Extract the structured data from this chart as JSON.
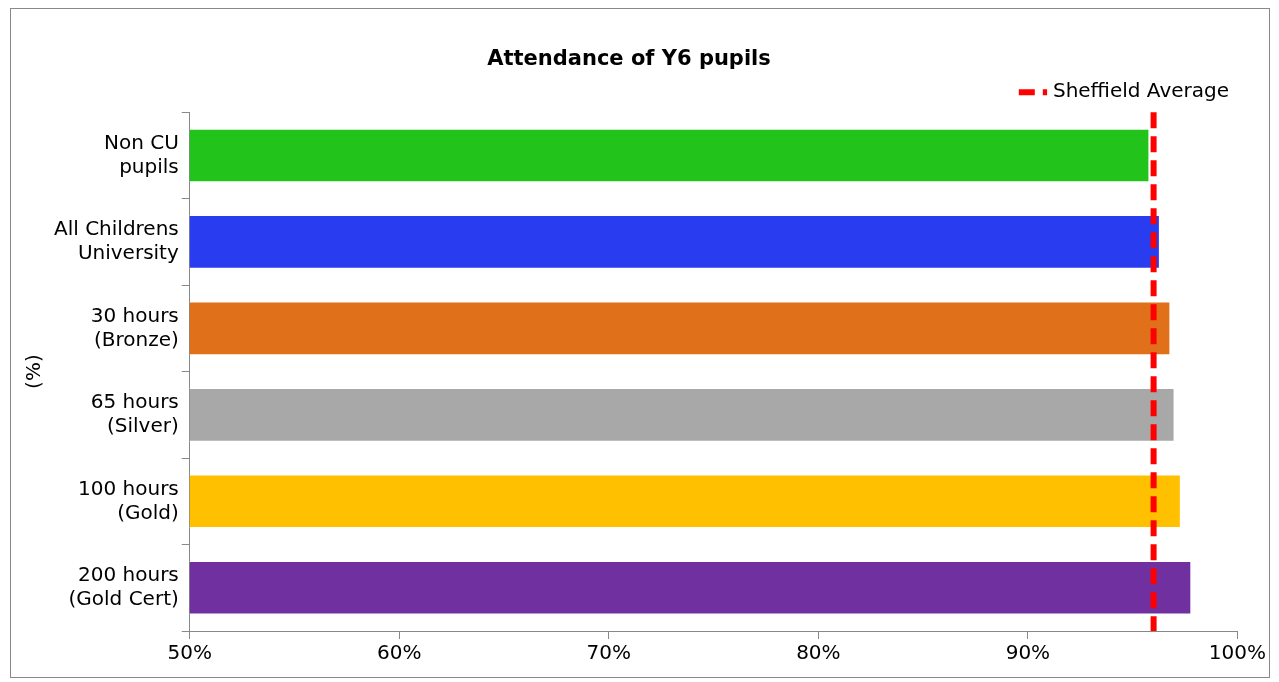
{
  "chart_data": {
    "type": "bar",
    "orientation": "horizontal",
    "title": "Attendance of Y6 pupils",
    "ylabel": "(%)",
    "categories": [
      "Non CU pupils",
      "All Childrens University",
      "30 hours (Bronze)",
      "65 hours (Silver)",
      "100 hours (Gold)",
      "200 hours (Gold Cert)"
    ],
    "values": [
      95.8,
      96.3,
      96.8,
      97.0,
      97.3,
      97.8
    ],
    "colors": [
      "#22c41c",
      "#2a3cf0",
      "#e0701a",
      "#a8a8a8",
      "#ffc000",
      "#7030a0"
    ],
    "xlim": [
      50,
      100
    ],
    "xticks": [
      {
        "value": 50,
        "label": "50%"
      },
      {
        "value": 60,
        "label": "60%"
      },
      {
        "value": 70,
        "label": "70%"
      },
      {
        "value": 80,
        "label": "80%"
      },
      {
        "value": 90,
        "label": "90%"
      },
      {
        "value": 100,
        "label": "100%"
      }
    ],
    "ref_lines": [
      {
        "axis": "x",
        "value": 96.0,
        "label": "Sheffield Average",
        "color": "#ff0000",
        "line_style": "dashed"
      }
    ],
    "legend": "top right",
    "grid": false
  }
}
